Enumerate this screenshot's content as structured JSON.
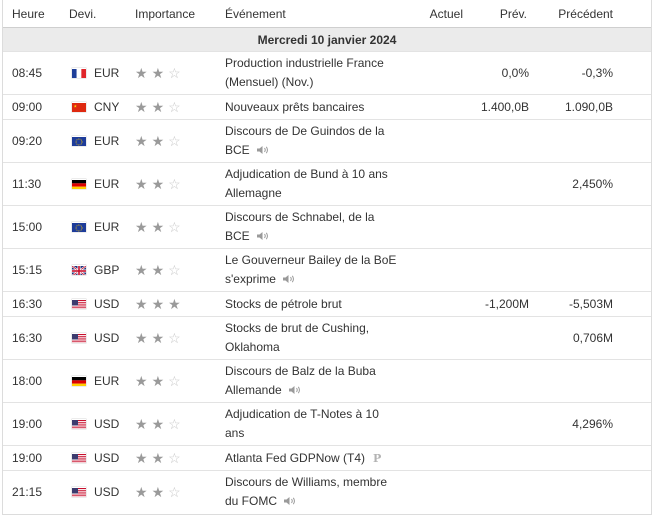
{
  "headers": {
    "time": "Heure",
    "currency": "Devi.",
    "importance": "Importance",
    "event": "Événement",
    "actual": "Actuel",
    "forecast": "Prév.",
    "previous": "Précédent"
  },
  "date_label": "Mercredi 10 janvier 2024",
  "rows": [
    {
      "time": "08:45",
      "flag": "france-flag-icon",
      "currency": "EUR",
      "importance": 2,
      "event_line1": "Production industrielle France",
      "event_line2": "(Mensuel) (Nov.)",
      "speech": false,
      "preliminary": false,
      "actual": "",
      "forecast": "0,0%",
      "previous": "-0,3%"
    },
    {
      "time": "09:00",
      "flag": "china-flag-icon",
      "currency": "CNY",
      "importance": 2,
      "event_line1": "Nouveaux prêts bancaires",
      "event_line2": "",
      "speech": false,
      "preliminary": false,
      "actual": "",
      "forecast": "1.400,0B",
      "previous": "1.090,0B"
    },
    {
      "time": "09:20",
      "flag": "eu-flag-icon",
      "currency": "EUR",
      "importance": 2,
      "event_line1": "Discours de De Guindos de la",
      "event_line2": "BCE",
      "speech": true,
      "preliminary": false,
      "actual": "",
      "forecast": "",
      "previous": ""
    },
    {
      "time": "11:30",
      "flag": "germany-flag-icon",
      "currency": "EUR",
      "importance": 2,
      "event_line1": "Adjudication de Bund à 10 ans",
      "event_line2": "Allemagne",
      "speech": false,
      "preliminary": false,
      "actual": "",
      "forecast": "",
      "previous": "2,450%"
    },
    {
      "time": "15:00",
      "flag": "eu-flag-icon",
      "currency": "EUR",
      "importance": 2,
      "event_line1": "Discours de Schnabel, de la",
      "event_line2": "BCE",
      "speech": true,
      "preliminary": false,
      "actual": "",
      "forecast": "",
      "previous": ""
    },
    {
      "time": "15:15",
      "flag": "uk-flag-icon",
      "currency": "GBP",
      "importance": 2,
      "event_line1": "Le Gouverneur Bailey de la BoE",
      "event_line2": "s'exprime",
      "speech": true,
      "preliminary": false,
      "actual": "",
      "forecast": "",
      "previous": ""
    },
    {
      "time": "16:30",
      "flag": "usa-flag-icon",
      "currency": "USD",
      "importance": 3,
      "event_line1": "Stocks de pétrole brut",
      "event_line2": "",
      "speech": false,
      "preliminary": false,
      "actual": "",
      "forecast": "-1,200M",
      "previous": "-5,503M"
    },
    {
      "time": "16:30",
      "flag": "usa-flag-icon",
      "currency": "USD",
      "importance": 2,
      "event_line1": "Stocks de brut de Cushing,",
      "event_line2": "Oklahoma",
      "speech": false,
      "preliminary": false,
      "actual": "",
      "forecast": "",
      "previous": "0,706M"
    },
    {
      "time": "18:00",
      "flag": "germany-flag-icon",
      "currency": "EUR",
      "importance": 2,
      "event_line1": "Discours de Balz de la Buba",
      "event_line2": "Allemande",
      "speech": true,
      "preliminary": false,
      "actual": "",
      "forecast": "",
      "previous": ""
    },
    {
      "time": "19:00",
      "flag": "usa-flag-icon",
      "currency": "USD",
      "importance": 2,
      "event_line1": "Adjudication de T-Notes à 10",
      "event_line2": "ans",
      "speech": false,
      "preliminary": false,
      "actual": "",
      "forecast": "",
      "previous": "4,296%"
    },
    {
      "time": "19:00",
      "flag": "usa-flag-icon",
      "currency": "USD",
      "importance": 2,
      "event_line1": "Atlanta Fed GDPNow (T4)",
      "event_line2": "",
      "speech": false,
      "preliminary": true,
      "preliminary_label": "P",
      "actual": "",
      "forecast": "",
      "previous": ""
    },
    {
      "time": "21:15",
      "flag": "usa-flag-icon",
      "currency": "USD",
      "importance": 2,
      "event_line1": "Discours de Williams, membre",
      "event_line2": "du FOMC",
      "speech": true,
      "preliminary": false,
      "actual": "",
      "forecast": "",
      "previous": ""
    }
  ]
}
